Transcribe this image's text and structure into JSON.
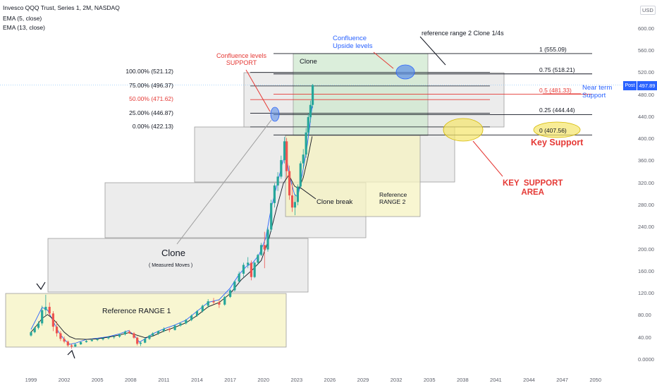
{
  "header": {
    "title": "Invesco QQQ Trust, Series 1, 2M, NASDAQ",
    "ema5": "EMA (5, close)",
    "ema13": "EMA (13, close)"
  },
  "colors": {
    "up": "#26a69a",
    "down": "#ef5350",
    "accent_red": "#e53935",
    "accent_blue": "#2962ff",
    "ema5": "#2962ff",
    "ema13": "#131722",
    "box_grey": "#e6e6e6",
    "box_yellow": "#f6f3c2",
    "box_green": "#cfe8cf"
  },
  "axis": {
    "currency": "USD",
    "y_ticks": [
      "600.00",
      "560.00",
      "520.00",
      "480.00",
      "440.00",
      "400.00",
      "360.00",
      "320.00",
      "280.00",
      "240.00",
      "200.00",
      "160.00",
      "120.00",
      "80.00",
      "40.00",
      "0.0000"
    ],
    "x_ticks": [
      "1999",
      "2002",
      "2005",
      "2008",
      "2011",
      "2014",
      "2017",
      "2020",
      "2023",
      "2026",
      "2029",
      "2032",
      "2035",
      "2038",
      "2041",
      "2044",
      "2047",
      "2050"
    ],
    "last_price": "497.89",
    "session_tag": "Post"
  },
  "fib_left": [
    {
      "label": "100.00% (521.12)",
      "color": "#131722"
    },
    {
      "label": "75.00% (496.37)",
      "color": "#131722"
    },
    {
      "label": "50.00% (471.62)",
      "color": "#e53935"
    },
    {
      "label": "25.00% (446.87)",
      "color": "#131722"
    },
    {
      "label": "0.00% (422.13)",
      "color": "#131722"
    }
  ],
  "fib_right": [
    {
      "label": "1 (555.09)",
      "color": "#131722"
    },
    {
      "label": "0.75 (518.21)",
      "color": "#131722"
    },
    {
      "label": "0.5 (481.33)",
      "color": "#e53935"
    },
    {
      "label": "0.25 (444.44)",
      "color": "#131722"
    },
    {
      "label": "0 (407.56)",
      "color": "#131722"
    }
  ],
  "annotations": {
    "confluence_support": "Confluence levels\nSUPPORT",
    "confluence_upside": "Confluence\nUpside levels",
    "ref_range2_clone": "reference range 2 Clone 1/4s",
    "clone_box": "Clone",
    "near_term": "Near term\nSupport",
    "key_support": "Key Support",
    "key_support_area": "KEY  SUPPORT\nAREA",
    "reference_range2": "Reference\nRANGE 2",
    "clone_break": "Clone break",
    "clone_measured": "Clone",
    "measured_moves": "( Measured Moves )",
    "reference_range1": "Reference RANGE 1"
  },
  "chart_data": {
    "type": "candlestick",
    "title": "Invesco QQQ Trust, Series 1, 2M, NASDAQ",
    "xlabel": "",
    "ylabel": "",
    "ylim": [
      0,
      620
    ],
    "xlim": [
      1998.0,
      2051.0
    ],
    "grid": false,
    "series": [
      {
        "name": "EMA (5, close)",
        "points": [
          [
            1999.0,
            55
          ],
          [
            1999.5,
            75
          ],
          [
            2000.0,
            95
          ],
          [
            2000.5,
            90
          ],
          [
            2001.0,
            70
          ],
          [
            2001.5,
            50
          ],
          [
            2002.0,
            37
          ],
          [
            2002.5,
            28
          ],
          [
            2003.0,
            30
          ],
          [
            2004.0,
            37
          ],
          [
            2005.0,
            39
          ],
          [
            2006.0,
            42
          ],
          [
            2007.0,
            47
          ],
          [
            2007.8,
            53
          ],
          [
            2008.3,
            45
          ],
          [
            2008.8,
            32
          ],
          [
            2009.3,
            38
          ],
          [
            2010.0,
            47
          ],
          [
            2011.0,
            56
          ],
          [
            2012.0,
            63
          ],
          [
            2013.0,
            72
          ],
          [
            2014.0,
            88
          ],
          [
            2015.0,
            104
          ],
          [
            2016.0,
            109
          ],
          [
            2017.0,
            130
          ],
          [
            2017.8,
            155
          ],
          [
            2018.5,
            170
          ],
          [
            2019.0,
            175
          ],
          [
            2019.6,
            190
          ],
          [
            2020.2,
            220
          ],
          [
            2020.7,
            275
          ],
          [
            2021.2,
            315
          ],
          [
            2021.7,
            355
          ],
          [
            2022.0,
            375
          ],
          [
            2022.4,
            330
          ],
          [
            2022.8,
            300
          ],
          [
            2023.1,
            295
          ],
          [
            2023.5,
            335
          ],
          [
            2023.9,
            380
          ],
          [
            2024.2,
            425
          ],
          [
            2024.4,
            460
          ]
        ]
      },
      {
        "name": "EMA (13, close)",
        "points": [
          [
            1999.0,
            50
          ],
          [
            1999.5,
            62
          ],
          [
            2000.0,
            75
          ],
          [
            2000.5,
            82
          ],
          [
            2001.0,
            74
          ],
          [
            2001.5,
            62
          ],
          [
            2002.0,
            50
          ],
          [
            2002.5,
            42
          ],
          [
            2003.0,
            38
          ],
          [
            2004.0,
            37
          ],
          [
            2005.0,
            38
          ],
          [
            2006.0,
            41
          ],
          [
            2007.0,
            45
          ],
          [
            2007.8,
            49
          ],
          [
            2008.5,
            45
          ],
          [
            2009.3,
            40
          ],
          [
            2010.0,
            43
          ],
          [
            2011.0,
            52
          ],
          [
            2012.0,
            59
          ],
          [
            2013.0,
            67
          ],
          [
            2014.0,
            80
          ],
          [
            2015.0,
            96
          ],
          [
            2016.0,
            104
          ],
          [
            2017.0,
            120
          ],
          [
            2018.0,
            145
          ],
          [
            2019.0,
            163
          ],
          [
            2019.8,
            180
          ],
          [
            2020.5,
            220
          ],
          [
            2021.2,
            275
          ],
          [
            2021.8,
            320
          ],
          [
            2022.3,
            335
          ],
          [
            2022.8,
            315
          ],
          [
            2023.2,
            310
          ],
          [
            2023.6,
            330
          ],
          [
            2024.0,
            365
          ],
          [
            2024.4,
            405
          ]
        ]
      }
    ],
    "candles": [
      [
        1999.0,
        44,
        52,
        42,
        50
      ],
      [
        1999.33,
        50,
        60,
        48,
        58
      ],
      [
        1999.67,
        58,
        70,
        55,
        66
      ],
      [
        2000.0,
        66,
        98,
        62,
        90
      ],
      [
        2000.33,
        90,
        118,
        80,
        96
      ],
      [
        2000.67,
        96,
        104,
        80,
        84
      ],
      [
        2001.0,
        84,
        88,
        52,
        60
      ],
      [
        2001.33,
        60,
        70,
        42,
        48
      ],
      [
        2001.67,
        48,
        52,
        34,
        38
      ],
      [
        2002.0,
        38,
        42,
        30,
        33
      ],
      [
        2002.33,
        33,
        35,
        23,
        26
      ],
      [
        2002.67,
        26,
        29,
        20,
        24
      ],
      [
        2003.0,
        24,
        30,
        23,
        28
      ],
      [
        2003.5,
        28,
        33,
        27,
        32
      ],
      [
        2004.0,
        32,
        36,
        31,
        34
      ],
      [
        2004.5,
        34,
        38,
        33,
        36
      ],
      [
        2005.0,
        36,
        39,
        34,
        37
      ],
      [
        2005.5,
        37,
        41,
        35,
        39
      ],
      [
        2006.0,
        39,
        43,
        37,
        41
      ],
      [
        2006.5,
        41,
        44,
        38,
        42
      ],
      [
        2007.0,
        42,
        47,
        40,
        46
      ],
      [
        2007.5,
        46,
        53,
        44,
        51
      ],
      [
        2007.9,
        51,
        54,
        47,
        48
      ],
      [
        2008.3,
        48,
        50,
        38,
        40
      ],
      [
        2008.6,
        40,
        42,
        26,
        29
      ],
      [
        2008.9,
        29,
        33,
        25,
        31
      ],
      [
        2009.3,
        31,
        40,
        30,
        38
      ],
      [
        2009.7,
        38,
        45,
        36,
        44
      ],
      [
        2010.0,
        44,
        50,
        42,
        48
      ],
      [
        2010.5,
        48,
        53,
        45,
        52
      ],
      [
        2011.0,
        52,
        59,
        50,
        56
      ],
      [
        2011.5,
        56,
        58,
        50,
        54
      ],
      [
        2012.0,
        54,
        64,
        53,
        62
      ],
      [
        2012.5,
        62,
        68,
        60,
        66
      ],
      [
        2013.0,
        66,
        74,
        64,
        72
      ],
      [
        2013.5,
        72,
        82,
        70,
        80
      ],
      [
        2014.0,
        80,
        90,
        78,
        88
      ],
      [
        2014.5,
        88,
        100,
        86,
        98
      ],
      [
        2015.0,
        98,
        110,
        94,
        106
      ],
      [
        2015.5,
        106,
        112,
        100,
        104
      ],
      [
        2016.0,
        104,
        108,
        94,
        100
      ],
      [
        2016.5,
        100,
        116,
        98,
        114
      ],
      [
        2017.0,
        114,
        128,
        112,
        126
      ],
      [
        2017.4,
        126,
        144,
        124,
        142
      ],
      [
        2017.8,
        142,
        160,
        140,
        156
      ],
      [
        2018.2,
        156,
        176,
        150,
        172
      ],
      [
        2018.6,
        172,
        186,
        166,
        176
      ],
      [
        2018.9,
        176,
        180,
        144,
        150
      ],
      [
        2019.2,
        150,
        178,
        148,
        176
      ],
      [
        2019.5,
        176,
        192,
        172,
        190
      ],
      [
        2019.8,
        190,
        212,
        188,
        208
      ],
      [
        2020.1,
        208,
        232,
        166,
        200
      ],
      [
        2020.4,
        200,
        240,
        196,
        236
      ],
      [
        2020.7,
        236,
        290,
        232,
        284
      ],
      [
        2021.0,
        284,
        320,
        276,
        316
      ],
      [
        2021.3,
        316,
        340,
        306,
        332
      ],
      [
        2021.6,
        332,
        370,
        328,
        362
      ],
      [
        2021.9,
        362,
        404,
        356,
        396
      ],
      [
        2022.1,
        396,
        402,
        330,
        342
      ],
      [
        2022.35,
        342,
        352,
        290,
        298
      ],
      [
        2022.6,
        298,
        320,
        268,
        276
      ],
      [
        2022.85,
        276,
        300,
        262,
        286
      ],
      [
        2023.1,
        286,
        318,
        280,
        314
      ],
      [
        2023.35,
        314,
        360,
        310,
        356
      ],
      [
        2023.6,
        356,
        382,
        346,
        372
      ],
      [
        2023.85,
        372,
        420,
        366,
        412
      ],
      [
        2024.05,
        412,
        446,
        406,
        440
      ],
      [
        2024.25,
        440,
        470,
        430,
        462
      ],
      [
        2024.45,
        462,
        500,
        456,
        497.89
      ]
    ],
    "fib_retracement_left": [
      {
        "level": "100.00%",
        "value": 521.12
      },
      {
        "level": "75.00%",
        "value": 496.37
      },
      {
        "level": "50.00%",
        "value": 471.62
      },
      {
        "level": "25.00%",
        "value": 446.87
      },
      {
        "level": "0.00%",
        "value": 422.13
      }
    ],
    "fib_range_right": [
      {
        "level": "1",
        "value": 555.09
      },
      {
        "level": "0.75",
        "value": 518.21
      },
      {
        "level": "0.5",
        "value": 481.33
      },
      {
        "level": "0.25",
        "value": 444.44
      },
      {
        "level": "0",
        "value": 407.56
      }
    ],
    "last_price": 497.89
  }
}
